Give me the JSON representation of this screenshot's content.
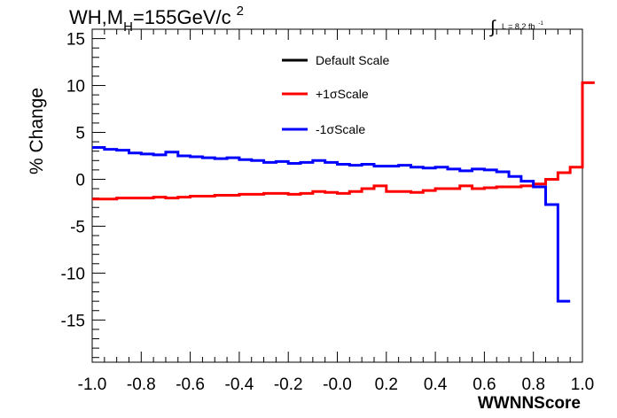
{
  "chart_data": {
    "type": "line",
    "title_main": "WH,M",
    "title_sub": "H",
    "title_mass": "=155GeV/c",
    "title_sup": "2",
    "lumi_integral": "∫",
    "lumi_text": "L = 8.2 fb",
    "lumi_exp": "-1",
    "xlabel": "WWNNScore",
    "ylabel": "% Change",
    "xlim": [
      -1.0,
      1.0
    ],
    "ylim": [
      -19.5,
      16
    ],
    "x_ticks": [
      "-1.0",
      "-0.8",
      "-0.6",
      "-0.4",
      "-0.2",
      "-0.0",
      "0.2",
      "0.4",
      "0.6",
      "0.8",
      "1.0"
    ],
    "y_ticks": [
      "15",
      "10",
      "5",
      "0",
      "-5",
      "-10",
      "-15"
    ],
    "legend_position": "top-center",
    "series": [
      {
        "name": "Default Scale",
        "color": "#000000",
        "values": []
      },
      {
        "name": "+1σScale",
        "color": "#ff0000",
        "values": [
          -2.1,
          -2.1,
          -2.0,
          -2.0,
          -2.0,
          -1.9,
          -2.0,
          -1.9,
          -1.8,
          -1.8,
          -1.7,
          -1.7,
          -1.6,
          -1.6,
          -1.5,
          -1.5,
          -1.6,
          -1.5,
          -1.3,
          -1.4,
          -1.5,
          -1.3,
          -1.0,
          -0.7,
          -1.3,
          -1.3,
          -1.4,
          -1.2,
          -1.0,
          -1.0,
          -0.7,
          -1.0,
          -0.9,
          -0.8,
          -0.8,
          -0.7,
          -0.5,
          0.0,
          0.7,
          1.3,
          10.3
        ]
      },
      {
        "name": "-1σScale",
        "color": "#0000ff",
        "values": [
          3.4,
          3.2,
          3.1,
          2.8,
          2.7,
          2.6,
          2.9,
          2.5,
          2.4,
          2.3,
          2.2,
          2.3,
          2.1,
          2.0,
          1.8,
          1.9,
          1.7,
          1.8,
          2.0,
          1.8,
          1.6,
          1.5,
          1.6,
          1.4,
          1.4,
          1.5,
          1.3,
          1.2,
          1.3,
          1.1,
          0.9,
          1.1,
          1.0,
          0.8,
          0.3,
          -0.2,
          -0.8,
          -2.7,
          -13.0
        ]
      }
    ]
  }
}
